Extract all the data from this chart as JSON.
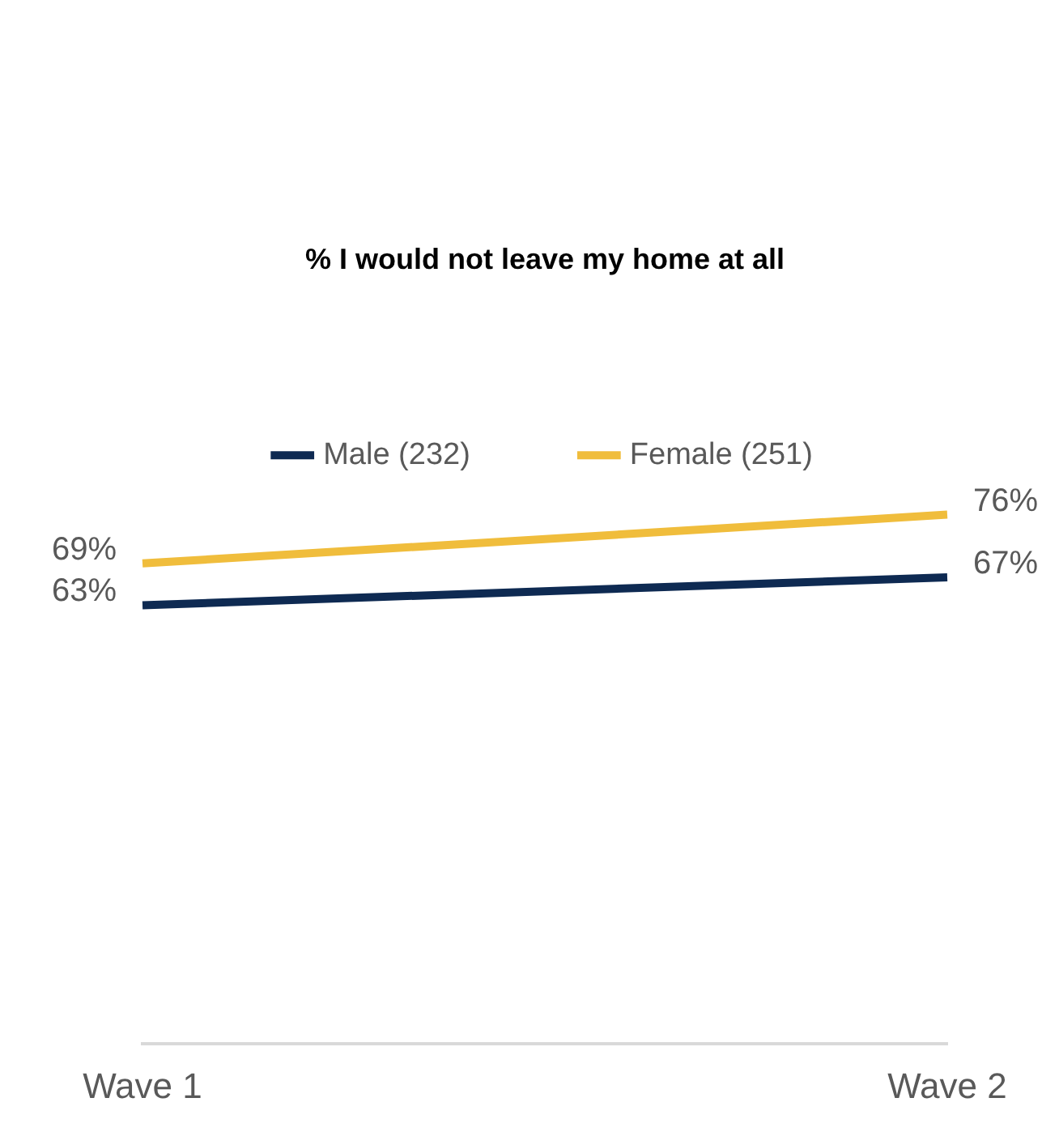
{
  "chart_data": {
    "type": "line",
    "title": "% I would not leave my home at all",
    "categories": [
      "Wave 1",
      "Wave 2"
    ],
    "series": [
      {
        "name": "Male (232)",
        "color": "#0e2a52",
        "values": [
          63,
          67
        ],
        "value_labels": [
          "63%",
          "67%"
        ]
      },
      {
        "name": "Female (251)",
        "color": "#f0bd3c",
        "values": [
          69,
          76
        ],
        "value_labels": [
          "69%",
          "76%"
        ]
      }
    ],
    "tick_labels": "x",
    "legend": "top",
    "marker": "none",
    "line_style": "solid"
  }
}
